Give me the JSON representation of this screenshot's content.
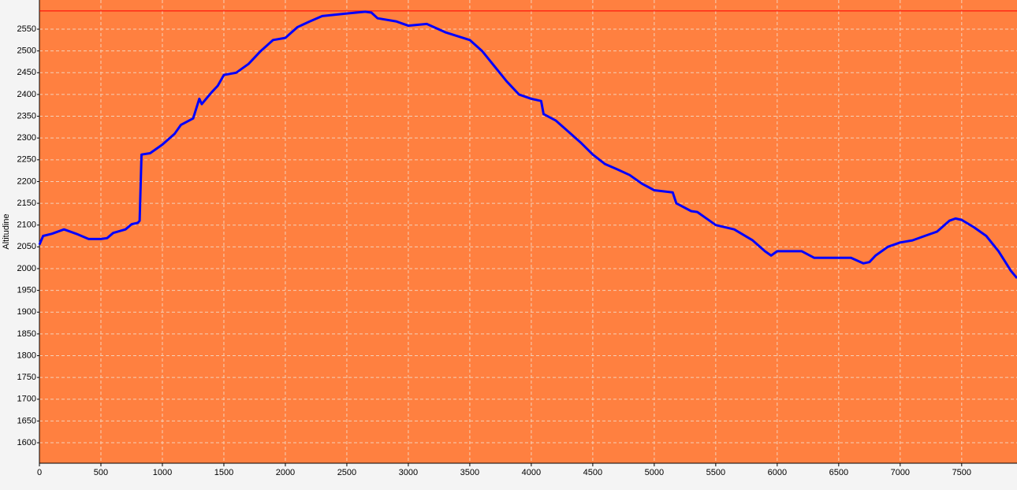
{
  "chart_data": {
    "type": "line",
    "y_label": "Altitudine",
    "x": [
      0,
      30,
      100,
      200,
      300,
      400,
      500,
      550,
      600,
      700,
      750,
      800,
      815,
      830,
      900,
      1000,
      1100,
      1150,
      1250,
      1300,
      1320,
      1400,
      1450,
      1500,
      1600,
      1700,
      1800,
      1900,
      2000,
      2100,
      2200,
      2300,
      2500,
      2650,
      2700,
      2750,
      2900,
      3000,
      3150,
      3300,
      3500,
      3600,
      3700,
      3800,
      3900,
      4000,
      4080,
      4100,
      4200,
      4300,
      4400,
      4500,
      4600,
      4700,
      4800,
      4900,
      5000,
      5150,
      5180,
      5300,
      5350,
      5500,
      5650,
      5800,
      5900,
      5950,
      6000,
      6200,
      6300,
      6500,
      6600,
      6700,
      6750,
      6800,
      6900,
      7000,
      7100,
      7200,
      7300,
      7400,
      7450,
      7500,
      7600,
      7700,
      7800,
      7900,
      7950
    ],
    "values": [
      2055,
      2075,
      2080,
      2090,
      2080,
      2068,
      2068,
      2070,
      2082,
      2090,
      2102,
      2105,
      2110,
      2262,
      2265,
      2285,
      2310,
      2330,
      2345,
      2390,
      2378,
      2405,
      2420,
      2445,
      2450,
      2470,
      2500,
      2525,
      2530,
      2555,
      2568,
      2580,
      2586,
      2590,
      2588,
      2575,
      2568,
      2558,
      2562,
      2543,
      2525,
      2500,
      2465,
      2430,
      2400,
      2390,
      2385,
      2355,
      2340,
      2315,
      2290,
      2262,
      2240,
      2228,
      2215,
      2195,
      2180,
      2175,
      2150,
      2132,
      2130,
      2100,
      2090,
      2065,
      2040,
      2030,
      2040,
      2040,
      2025,
      2025,
      2025,
      2012,
      2015,
      2030,
      2050,
      2060,
      2065,
      2075,
      2085,
      2110,
      2115,
      2112,
      2095,
      2075,
      2040,
      1995,
      1978
    ],
    "color": "#0000ff",
    "background": "#ff8040",
    "max_line": 2592,
    "max_line_color": "#ff0000",
    "grid": true,
    "xlim": [
      0,
      7950
    ],
    "ylim": [
      1553,
      2617
    ],
    "xticks": [
      0,
      500,
      1000,
      1500,
      2000,
      2500,
      3000,
      3500,
      4000,
      4500,
      5000,
      5500,
      6000,
      6500,
      7000,
      7500
    ],
    "yticks": [
      1600,
      1650,
      1700,
      1750,
      1800,
      1850,
      1900,
      1950,
      2000,
      2050,
      2100,
      2150,
      2200,
      2250,
      2300,
      2350,
      2400,
      2450,
      2500,
      2550
    ]
  }
}
